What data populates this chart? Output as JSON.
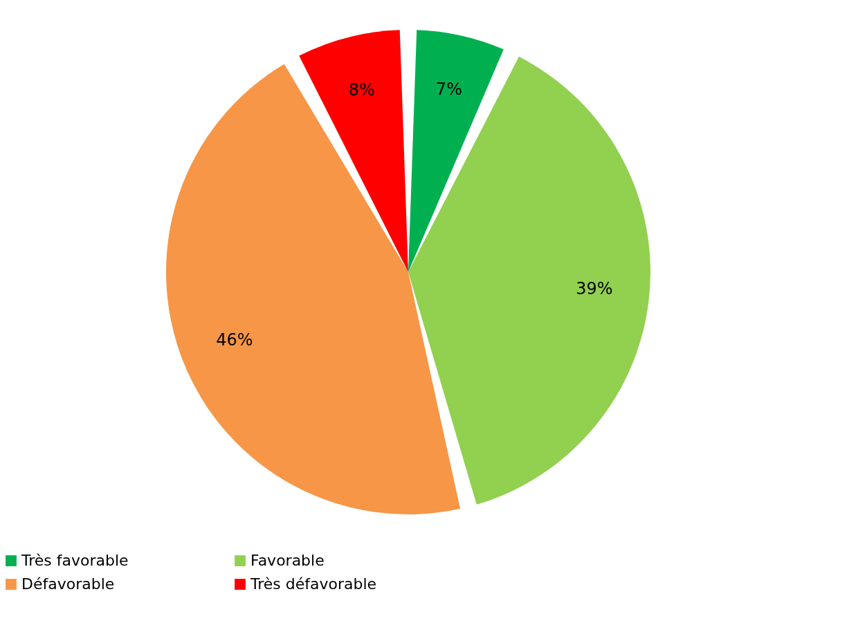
{
  "chart_data": {
    "type": "pie",
    "categories": [
      "Très favorable",
      "Favorable",
      "Défavorable",
      "Très défavorable"
    ],
    "values": [
      7,
      39,
      46,
      8
    ],
    "colors": [
      "#00b050",
      "#92d050",
      "#f79646",
      "#ff0000"
    ],
    "value_labels": [
      "7%",
      "39%",
      "46%",
      "8%"
    ],
    "legend": "bottom"
  }
}
